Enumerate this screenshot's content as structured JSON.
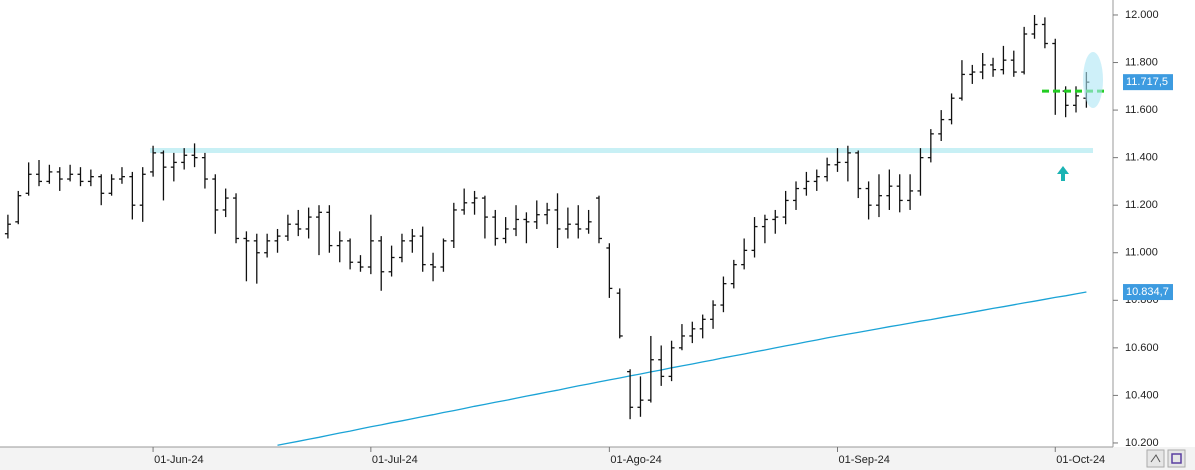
{
  "chart_data": {
    "type": "ohlc",
    "categories": [
      null,
      null,
      null,
      null,
      null,
      null,
      null,
      null,
      null,
      null,
      null,
      null,
      null,
      null,
      "01-Jun-24",
      null,
      null,
      null,
      null,
      null,
      null,
      null,
      null,
      null,
      null,
      null,
      null,
      null,
      null,
      null,
      null,
      null,
      null,
      null,
      null,
      "01-Jul-24",
      null,
      null,
      null,
      null,
      null,
      null,
      null,
      null,
      null,
      null,
      null,
      null,
      null,
      null,
      null,
      null,
      null,
      null,
      null,
      null,
      null,
      null,
      "01-Ago-24",
      null,
      null,
      null,
      null,
      null,
      null,
      null,
      null,
      null,
      null,
      null,
      null,
      null,
      null,
      null,
      null,
      null,
      null,
      null,
      null,
      null,
      "01-Sep-24",
      null,
      null,
      null,
      null,
      null,
      null,
      null,
      null,
      null,
      null,
      null,
      null,
      null,
      null,
      null,
      null,
      null,
      null,
      null,
      null,
      "01-Oct-24",
      null,
      null,
      null
    ],
    "open": [
      11080,
      11130,
      11250,
      11330,
      11300,
      11340,
      11310,
      11330,
      11300,
      11320,
      11250,
      11310,
      11320,
      11200,
      11340,
      11420,
      11360,
      11380,
      11410,
      11400,
      11310,
      11180,
      11230,
      11060,
      11050,
      11000,
      11050,
      11070,
      11120,
      11100,
      11150,
      11170,
      11030,
      11050,
      10960,
      10940,
      11050,
      10920,
      10980,
      11050,
      11070,
      10950,
      10940,
      11050,
      11180,
      11210,
      11230,
      11150,
      11060,
      11100,
      11140,
      11130,
      11160,
      11180,
      11100,
      11120,
      11100,
      11230,
      11020,
      10830,
      10500,
      10350,
      10380,
      10550,
      10480,
      10600,
      10650,
      10680,
      10720,
      10780,
      10870,
      10950,
      11010,
      11110,
      11140,
      11150,
      11220,
      11270,
      11300,
      11320,
      11370,
      11380,
      11420,
      11270,
      11200,
      11240,
      11280,
      11220,
      11260,
      11400,
      11500,
      11560,
      11650,
      11750,
      11760,
      11790,
      11770,
      11810,
      11760,
      11920,
      11960,
      11880,
      11680,
      11620,
      11650
    ],
    "high": [
      11160,
      11260,
      11380,
      11390,
      11370,
      11360,
      11370,
      11360,
      11350,
      11330,
      11330,
      11360,
      11340,
      11360,
      11450,
      11430,
      11420,
      11440,
      11460,
      11420,
      11330,
      11270,
      11250,
      11090,
      11080,
      11080,
      11100,
      11160,
      11180,
      11190,
      11200,
      11200,
      11090,
      11060,
      10990,
      11160,
      11070,
      11030,
      11080,
      11100,
      11110,
      11000,
      11060,
      11210,
      11270,
      11260,
      11240,
      11180,
      11150,
      11200,
      11170,
      11220,
      11210,
      11250,
      11190,
      11200,
      11180,
      11240,
      11040,
      10850,
      10510,
      10480,
      10650,
      10610,
      10630,
      10700,
      10710,
      10740,
      10800,
      10900,
      10970,
      11060,
      11150,
      11160,
      11180,
      11260,
      11300,
      11340,
      11350,
      11400,
      11440,
      11450,
      11430,
      11300,
      11330,
      11350,
      11330,
      11330,
      11440,
      11520,
      11600,
      11670,
      11810,
      11790,
      11840,
      11820,
      11870,
      11850,
      11950,
      12000,
      11990,
      11900,
      11700,
      11700,
      11760
    ],
    "low": [
      11060,
      11120,
      11240,
      11280,
      11290,
      11260,
      11300,
      11280,
      11280,
      11200,
      11240,
      11290,
      11140,
      11130,
      11320,
      11220,
      11300,
      11350,
      11360,
      11270,
      11080,
      11150,
      11040,
      10880,
      10870,
      10980,
      11000,
      11050,
      11070,
      11060,
      10990,
      11000,
      10960,
      10930,
      10920,
      10910,
      10840,
      10900,
      10960,
      11000,
      10920,
      10880,
      10920,
      11020,
      11160,
      11160,
      11060,
      11030,
      11040,
      11070,
      11040,
      11100,
      11120,
      11020,
      11060,
      11060,
      11080,
      11040,
      10810,
      10640,
      10300,
      10310,
      10370,
      10440,
      10460,
      10590,
      10620,
      10640,
      10680,
      10750,
      10850,
      10930,
      10980,
      11040,
      11080,
      11120,
      11180,
      11240,
      11260,
      11300,
      11340,
      11300,
      11230,
      11140,
      11150,
      11180,
      11170,
      11180,
      11240,
      11380,
      11470,
      11540,
      11640,
      11710,
      11730,
      11740,
      11750,
      11740,
      11750,
      11900,
      11860,
      11580,
      11570,
      11590,
      11610
    ],
    "close": [
      11120,
      11240,
      11330,
      11300,
      11340,
      11310,
      11330,
      11300,
      11320,
      11250,
      11310,
      11320,
      11200,
      11330,
      11420,
      11360,
      11380,
      11410,
      11400,
      11310,
      11180,
      11230,
      11060,
      11050,
      11000,
      11050,
      11070,
      11120,
      11100,
      11150,
      11170,
      11030,
      11050,
      10960,
      10940,
      11050,
      10920,
      10980,
      11050,
      11070,
      10950,
      10940,
      11050,
      11180,
      11210,
      11230,
      11150,
      11060,
      11100,
      11140,
      11130,
      11160,
      11180,
      11100,
      11120,
      11100,
      11130,
      11060,
      10850,
      10650,
      10350,
      10380,
      10550,
      10480,
      10600,
      10650,
      10680,
      10720,
      10780,
      10870,
      10950,
      11010,
      11110,
      11140,
      11150,
      11220,
      11270,
      11300,
      11320,
      11370,
      11380,
      11420,
      11270,
      11200,
      11240,
      11280,
      11220,
      11260,
      11400,
      11500,
      11560,
      11650,
      11750,
      11760,
      11790,
      11770,
      11810,
      11760,
      11920,
      11960,
      11880,
      11680,
      11620,
      11660,
      11717.5
    ],
    "bar_color": "#111111",
    "moving_average": {
      "color": "#1ba3d6",
      "values": [
        null,
        null,
        null,
        null,
        null,
        null,
        null,
        null,
        null,
        null,
        null,
        null,
        null,
        null,
        null,
        null,
        null,
        null,
        null,
        null,
        null,
        null,
        null,
        null,
        null,
        null,
        10190,
        10199,
        10207,
        10216,
        10224,
        10233,
        10242,
        10250,
        10259,
        10268,
        10276,
        10285,
        10293,
        10302,
        10311,
        10319,
        10328,
        10336,
        10345,
        10354,
        10362,
        10371,
        10379,
        10388,
        10397,
        10405,
        10414,
        10422,
        10431,
        10440,
        10448,
        10457,
        10465,
        10473,
        10482,
        10490,
        10499,
        10507,
        10516,
        10524,
        10532,
        10541,
        10549,
        10558,
        10566,
        10574,
        10583,
        10591,
        10600,
        10608,
        10616,
        10625,
        10633,
        10642,
        10650,
        10658,
        10665,
        10673,
        10681,
        10689,
        10696,
        10704,
        10712,
        10719,
        10727,
        10735,
        10742,
        10750,
        10758,
        10766,
        10773,
        10781,
        10789,
        10796,
        10804,
        10812,
        10819,
        10827,
        10834.7
      ]
    },
    "price_tags": [
      {
        "value": 11717.5,
        "label": "11.717,5",
        "color": "#3d9be0"
      },
      {
        "value": 10834.7,
        "label": "10.834,7",
        "color": "#3d9be0"
      }
    ],
    "support_level": {
      "value": 11430,
      "color": "#c8f0f5"
    },
    "target_level": {
      "value": 11680,
      "color": "#22cc22"
    },
    "ylim": [
      10183,
      12063
    ],
    "yticks": [
      {
        "value": 10200,
        "label": "10.200"
      },
      {
        "value": 10400,
        "label": "10.400"
      },
      {
        "value": 10600,
        "label": "10.600"
      },
      {
        "value": 10800,
        "label": "10.800"
      },
      {
        "value": 11000,
        "label": "11.000"
      },
      {
        "value": 11200,
        "label": "11.200"
      },
      {
        "value": 11400,
        "label": "11.400"
      },
      {
        "value": 11600,
        "label": "11.600"
      },
      {
        "value": 11800,
        "label": "11.800"
      },
      {
        "value": 12000,
        "label": "12.000"
      }
    ]
  }
}
